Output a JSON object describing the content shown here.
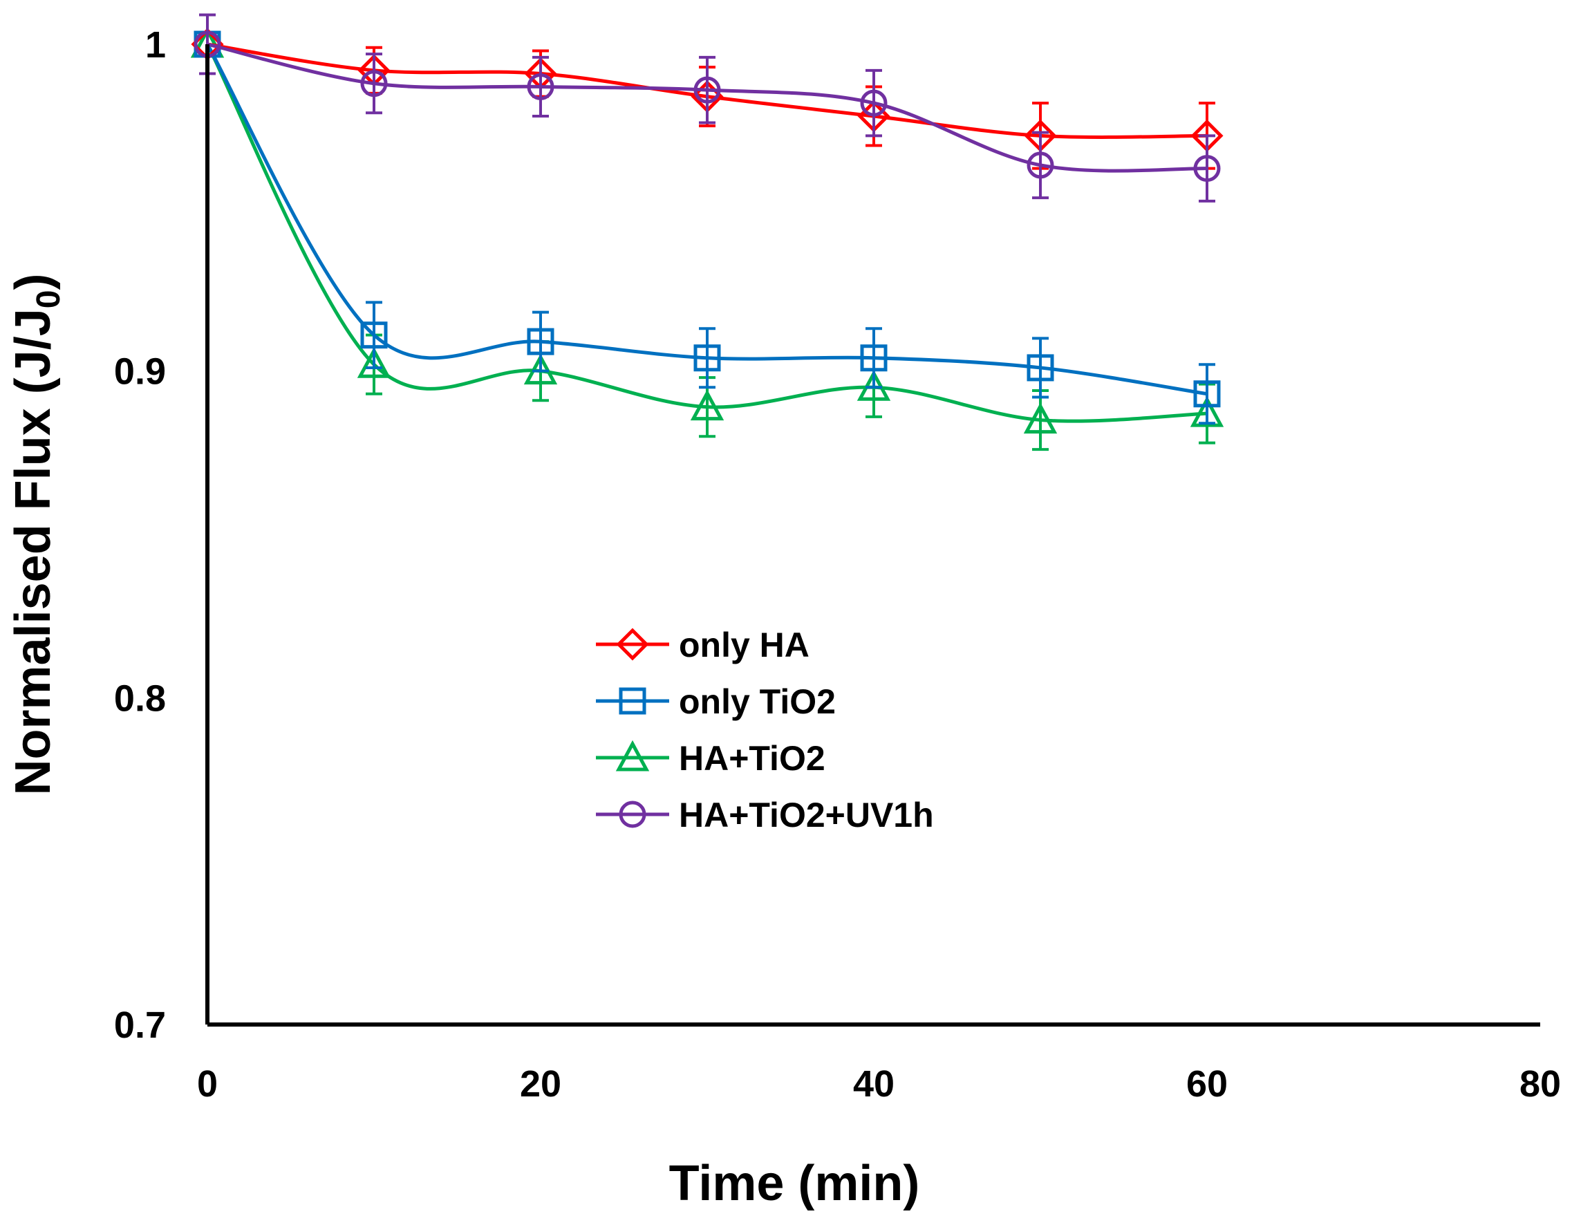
{
  "chart_data": {
    "type": "line",
    "title": "",
    "xlabel": "Time (min)",
    "ylabel": {
      "main": "Normalised  Flux (J/J",
      "subscript": "0",
      "close": ")"
    },
    "xlim": [
      0,
      80
    ],
    "ylim": [
      0.7,
      1.0
    ],
    "x_ticks": [
      0,
      20,
      40,
      60,
      80
    ],
    "x_tick_labels": [
      "0",
      "20",
      "40",
      "60",
      "80"
    ],
    "y_ticks": [
      0.7,
      0.8,
      0.9,
      1.0
    ],
    "y_tick_labels": [
      "0.7",
      "0.8",
      "0.9",
      "1"
    ],
    "grid": false,
    "legend_position": "center",
    "x": [
      0,
      10,
      20,
      30,
      40,
      50,
      60
    ],
    "series": [
      {
        "name": "only HA",
        "color": "#ff0000",
        "marker": "diamond",
        "values": [
          1.0,
          0.992,
          0.991,
          0.984,
          0.978,
          0.972,
          0.972
        ],
        "errors": [
          0.009,
          0.007,
          0.007,
          0.009,
          0.009,
          0.01,
          0.01
        ]
      },
      {
        "name": "only TiO2",
        "color": "#0070c0",
        "marker": "square",
        "values": [
          1.0,
          0.911,
          0.909,
          0.904,
          0.904,
          0.901,
          0.893
        ],
        "errors": [
          0.009,
          0.01,
          0.009,
          0.009,
          0.009,
          0.009,
          0.009
        ]
      },
      {
        "name": "HA+TiO2",
        "color": "#00b050",
        "marker": "triangle",
        "values": [
          1.0,
          0.902,
          0.9,
          0.889,
          0.895,
          0.885,
          0.887
        ],
        "errors": [
          0.009,
          0.009,
          0.009,
          0.009,
          0.009,
          0.009,
          0.009
        ]
      },
      {
        "name": "HA+TiO2+UV1h",
        "color": "#7030a0",
        "marker": "circle",
        "values": [
          1.0,
          0.988,
          0.987,
          0.986,
          0.982,
          0.963,
          0.962
        ],
        "errors": [
          0.009,
          0.009,
          0.009,
          0.01,
          0.01,
          0.01,
          0.01
        ]
      }
    ]
  }
}
